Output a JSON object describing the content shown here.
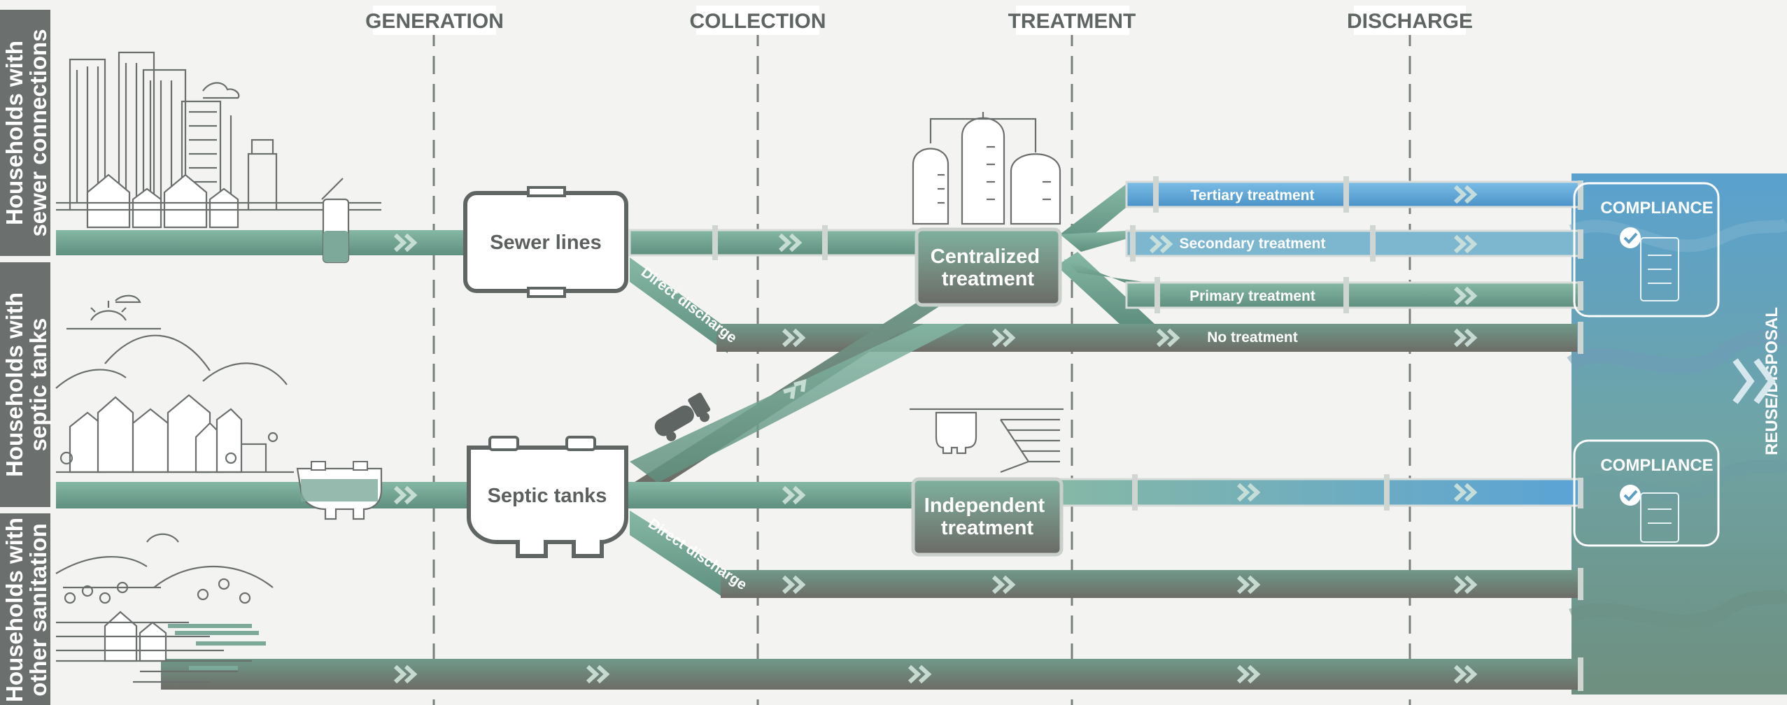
{
  "stages": [
    {
      "key": "generation",
      "label": "GENERATION"
    },
    {
      "key": "collection",
      "label": "COLLECTION"
    },
    {
      "key": "treatment",
      "label": "TREATMENT"
    },
    {
      "key": "discharge",
      "label": "DISCHARGE"
    }
  ],
  "households": [
    {
      "key": "sewer",
      "line1": "Households with",
      "line2": "sewer connections"
    },
    {
      "key": "septic",
      "line1": "Households with",
      "line2": "septic tanks"
    },
    {
      "key": "other",
      "line1": "Households with",
      "line2": "other sanitation"
    }
  ],
  "nodes": {
    "sewer_lines": "Sewer lines",
    "septic_tanks": "Septic tanks",
    "centralized": {
      "line1": "Centralized",
      "line2": "treatment"
    },
    "independent": {
      "line1": "Independent",
      "line2": "treatment"
    }
  },
  "pipes": {
    "direct_discharge_1": "Direct discharge",
    "direct_discharge_2": "Direct discharge",
    "tertiary": "Tertiary treatment",
    "secondary": "Secondary treatment",
    "primary": "Primary treatment",
    "none": "No treatment"
  },
  "compliance": [
    "COMPLIANCE",
    "COMPLIANCE"
  ],
  "reuse": "REUSE/DISPOSAL",
  "colors": {
    "pipe_green": "#6f9e8e",
    "pipe_dark": "#6d7a73",
    "pipe_blue": "#5aa3d6",
    "side_panel": "#6b706e",
    "water": "#5d9fc2"
  }
}
